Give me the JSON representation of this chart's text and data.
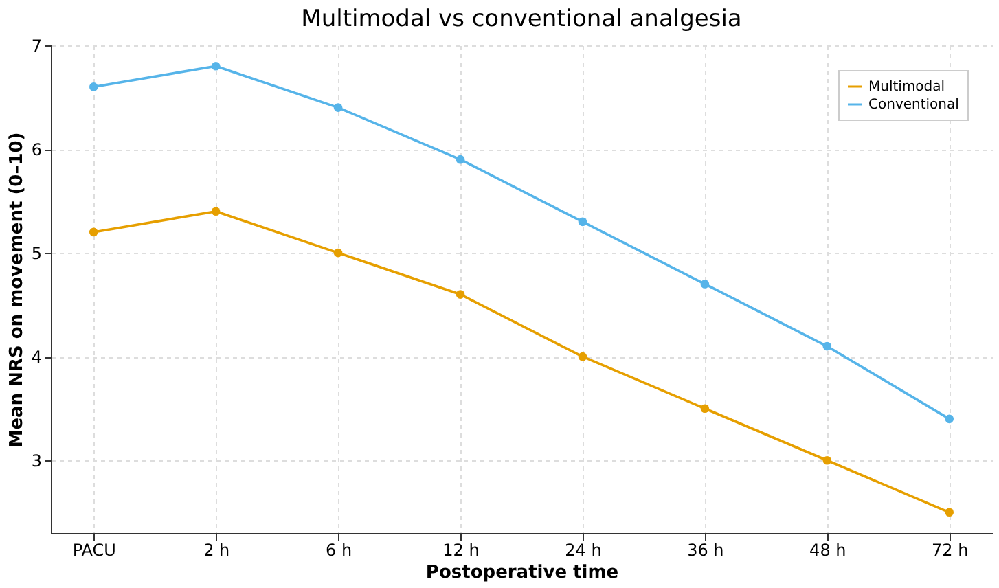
{
  "chart_data": {
    "type": "line",
    "title": "Multimodal vs conventional analgesia",
    "xlabel": "Postoperative time",
    "ylabel": "Mean NRS on movement (0–10)",
    "categories": [
      "PACU",
      "2 h",
      "6 h",
      "12 h",
      "24 h",
      "36 h",
      "48 h",
      "72 h"
    ],
    "series": [
      {
        "name": "Multimodal",
        "color": "#e69f00",
        "values": [
          5.2,
          5.4,
          5.0,
          4.6,
          4.0,
          3.5,
          3.0,
          2.5
        ]
      },
      {
        "name": "Conventional",
        "color": "#56b4e9",
        "values": [
          6.6,
          6.8,
          6.4,
          5.9,
          5.3,
          4.7,
          4.1,
          3.4
        ]
      }
    ],
    "ylim": [
      2.3,
      7
    ],
    "yticks": [
      3,
      4,
      5,
      6,
      7
    ],
    "grid": true,
    "legend": "top right",
    "marker": "circle",
    "line_style": "solid"
  }
}
